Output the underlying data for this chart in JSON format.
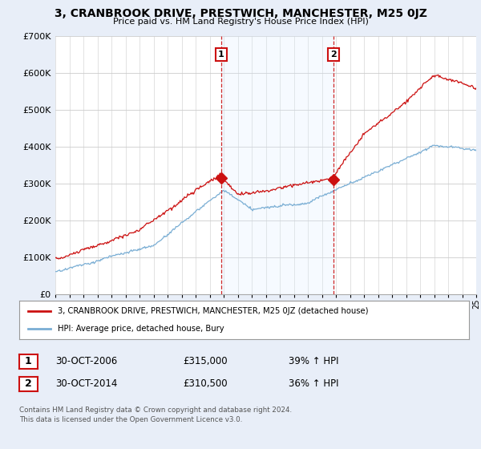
{
  "title": "3, CRANBROOK DRIVE, PRESTWICH, MANCHESTER, M25 0JZ",
  "subtitle": "Price paid vs. HM Land Registry's House Price Index (HPI)",
  "ylim": [
    0,
    700000
  ],
  "yticks": [
    0,
    100000,
    200000,
    300000,
    400000,
    500000,
    600000,
    700000
  ],
  "hpi_color": "#7aaed4",
  "property_color": "#cc1111",
  "vline_color": "#cc1111",
  "shade_color": "#ddeeff",
  "marker1_year": 2006.83,
  "marker2_year": 2014.83,
  "marker1_price": 315000,
  "marker2_price": 310500,
  "legend_property": "3, CRANBROOK DRIVE, PRESTWICH, MANCHESTER, M25 0JZ (detached house)",
  "legend_hpi": "HPI: Average price, detached house, Bury",
  "table_row1": [
    "1",
    "30-OCT-2006",
    "£315,000",
    "39% ↑ HPI"
  ],
  "table_row2": [
    "2",
    "30-OCT-2014",
    "£310,500",
    "36% ↑ HPI"
  ],
  "footnote": "Contains HM Land Registry data © Crown copyright and database right 2024.\nThis data is licensed under the Open Government Licence v3.0.",
  "background_color": "#e8eef8",
  "plot_bg_color": "#ffffff",
  "x_start_year": 1995,
  "x_end_year": 2025
}
